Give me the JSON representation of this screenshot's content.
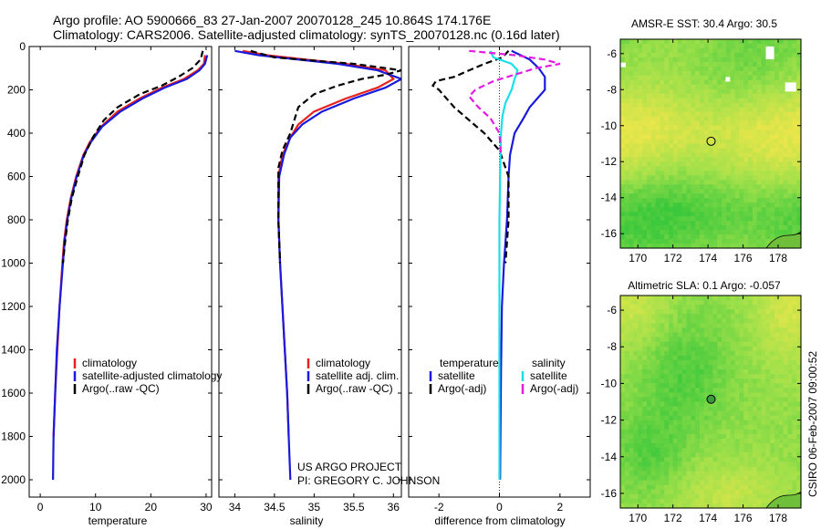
{
  "header": {
    "title_line1": "Argo profile: AO 5900666_83 27-Jan-2007 20070128_245 10.864S 174.176E",
    "title_line2": "Climatology: CARS2006. Satellite-adjusted climatology: synTS_20070128.nc (0.16d later)"
  },
  "credit": {
    "project": "US ARGO PROJECT",
    "pi": "PI: GREGORY C. JOHNSON"
  },
  "side_stamp": "CSIRO 06-Feb-2007 09:00:52",
  "colors": {
    "climatology": "#e8211c",
    "satellite": "#1a1adc",
    "argo": "#000000",
    "sal_satellite": "#19e0e6",
    "sal_argo": "#e21ce0",
    "map_base": "#9ee04a",
    "map_green": "#3cc83c",
    "map_yellow": "#e8e64a",
    "land": "#ffffff"
  },
  "chart_data": [
    {
      "name": "temperature-profile",
      "type": "line",
      "xlabel": "temperature",
      "ylabel": "",
      "xlim": [
        -2,
        31
      ],
      "ylim": [
        2080,
        0
      ],
      "xticks": [
        0,
        10,
        20,
        30
      ],
      "yticks": [
        0,
        200,
        400,
        600,
        800,
        1000,
        1200,
        1400,
        1600,
        1800,
        2000
      ],
      "series": [
        {
          "name": "climatology",
          "color": "#e8211c",
          "dash": "",
          "points": [
            [
              29.8,
              40
            ],
            [
              29.6,
              80
            ],
            [
              28.5,
              110
            ],
            [
              26,
              150
            ],
            [
              22,
              190
            ],
            [
              18,
              240
            ],
            [
              14,
              300
            ],
            [
              11,
              370
            ],
            [
              9,
              440
            ],
            [
              7.8,
              500
            ],
            [
              6.5,
              600
            ],
            [
              5.5,
              700
            ],
            [
              4.8,
              800
            ],
            [
              4.3,
              900
            ],
            [
              4,
              1000
            ],
            [
              3.5,
              1200
            ],
            [
              3.1,
              1400
            ],
            [
              2.7,
              1600
            ],
            [
              2.4,
              1800
            ]
          ]
        },
        {
          "name": "satellite-adjusted climatology",
          "color": "#1a1adc",
          "dash": "",
          "points": [
            [
              30.2,
              40
            ],
            [
              29.8,
              80
            ],
            [
              28.8,
              110
            ],
            [
              26.5,
              150
            ],
            [
              22.5,
              190
            ],
            [
              18.5,
              240
            ],
            [
              14.5,
              300
            ],
            [
              11.2,
              370
            ],
            [
              9.2,
              440
            ],
            [
              7.9,
              500
            ],
            [
              6.6,
              600
            ],
            [
              5.6,
              700
            ],
            [
              4.9,
              800
            ],
            [
              4.4,
              900
            ],
            [
              4.1,
              1000
            ],
            [
              3.5,
              1200
            ],
            [
              3,
              1400
            ],
            [
              2.7,
              1600
            ],
            [
              2.4,
              1800
            ],
            [
              2.3,
              2000
            ]
          ]
        },
        {
          "name": "Argo(..raw -QC)",
          "color": "#000000",
          "dash": "7,4",
          "points": [
            [
              29.4,
              20
            ],
            [
              29,
              60
            ],
            [
              27.5,
              100
            ],
            [
              25,
              140
            ],
            [
              22,
              180
            ],
            [
              18,
              220
            ],
            [
              14,
              280
            ],
            [
              11.5,
              340
            ],
            [
              9.5,
              420
            ],
            [
              8,
              500
            ],
            [
              6.8,
              600
            ],
            [
              5.7,
              700
            ],
            [
              5,
              800
            ],
            [
              4.5,
              900
            ],
            [
              4.1,
              1000
            ]
          ]
        }
      ],
      "legend": [
        "climatology",
        "satellite-adjusted climatology",
        "Argo(..raw -QC)"
      ]
    },
    {
      "name": "salinity-profile",
      "type": "line",
      "xlabel": "salinity",
      "ylabel": "",
      "xlim": [
        33.8,
        36.1
      ],
      "ylim": [
        2080,
        0
      ],
      "xticks": [
        34,
        34.5,
        35,
        35.5,
        36
      ],
      "xtick_labels": [
        "34",
        "34.5",
        "35",
        "35.5",
        "36"
      ],
      "series": [
        {
          "name": "climatology",
          "color": "#e8211c",
          "dash": "",
          "points": [
            [
              34.1,
              20
            ],
            [
              34.4,
              40
            ],
            [
              34.9,
              60
            ],
            [
              35.4,
              80
            ],
            [
              35.9,
              110
            ],
            [
              36,
              150
            ],
            [
              35.8,
              190
            ],
            [
              35.4,
              240
            ],
            [
              35,
              300
            ],
            [
              34.8,
              360
            ],
            [
              34.7,
              420
            ],
            [
              34.6,
              500
            ],
            [
              34.55,
              600
            ],
            [
              34.55,
              800
            ],
            [
              34.57,
              1000
            ],
            [
              34.6,
              1200
            ],
            [
              34.63,
              1400
            ],
            [
              34.66,
              1600
            ],
            [
              34.68,
              1800
            ]
          ]
        },
        {
          "name": "satellite adj. clim.",
          "color": "#1a1adc",
          "dash": "",
          "points": [
            [
              34,
              20
            ],
            [
              34.3,
              40
            ],
            [
              34.8,
              60
            ],
            [
              35.3,
              80
            ],
            [
              35.8,
              110
            ],
            [
              36.1,
              150
            ],
            [
              35.9,
              190
            ],
            [
              35.5,
              240
            ],
            [
              35.1,
              300
            ],
            [
              34.85,
              360
            ],
            [
              34.7,
              420
            ],
            [
              34.62,
              500
            ],
            [
              34.56,
              600
            ],
            [
              34.55,
              800
            ],
            [
              34.57,
              1000
            ],
            [
              34.6,
              1200
            ],
            [
              34.63,
              1400
            ],
            [
              34.66,
              1600
            ],
            [
              34.68,
              1800
            ],
            [
              34.7,
              2000
            ]
          ]
        },
        {
          "name": "Argo(..raw -QC)",
          "color": "#000000",
          "dash": "7,4",
          "points": [
            [
              34.2,
              20
            ],
            [
              34.5,
              50
            ],
            [
              35.5,
              80
            ],
            [
              36.1,
              110
            ],
            [
              35.9,
              130
            ],
            [
              35.6,
              150
            ],
            [
              35.3,
              180
            ],
            [
              35,
              220
            ],
            [
              34.8,
              280
            ],
            [
              34.75,
              340
            ],
            [
              34.7,
              400
            ],
            [
              34.6,
              480
            ],
            [
              34.55,
              560
            ],
            [
              34.55,
              800
            ],
            [
              34.57,
              1000
            ]
          ]
        }
      ],
      "legend": [
        "climatology",
        "satellite adj. clim.",
        "Argo(..raw -QC)"
      ]
    },
    {
      "name": "difference-profile",
      "type": "line",
      "xlabel": "difference from climatology",
      "ylabel": "",
      "xlim": [
        -3,
        3
      ],
      "ylim": [
        2080,
        0
      ],
      "xticks": [
        -2,
        0,
        2
      ],
      "zero_line": true,
      "series": [
        {
          "name": "temperature satellite",
          "color": "#1a1adc",
          "dash": "",
          "points": [
            [
              0.4,
              20
            ],
            [
              1,
              60
            ],
            [
              1.3,
              100
            ],
            [
              1.5,
              140
            ],
            [
              1.5,
              200
            ],
            [
              1,
              280
            ],
            [
              0.8,
              330
            ],
            [
              0.5,
              400
            ],
            [
              0.35,
              500
            ],
            [
              0.3,
              600
            ],
            [
              0.25,
              800
            ],
            [
              0.15,
              1000
            ],
            [
              0.08,
              1200
            ],
            [
              0.05,
              1500
            ],
            [
              0.02,
              2000
            ]
          ]
        },
        {
          "name": "temperature Argo(-adj)",
          "color": "#000000",
          "dash": "7,4",
          "points": [
            [
              0.3,
              20
            ],
            [
              0.1,
              50
            ],
            [
              -0.5,
              80
            ],
            [
              -1,
              110
            ],
            [
              -1.5,
              140
            ],
            [
              -2.1,
              160
            ],
            [
              -2.2,
              180
            ],
            [
              -2,
              200
            ],
            [
              -1.5,
              280
            ],
            [
              -1,
              340
            ],
            [
              -0.5,
              400
            ],
            [
              0,
              480
            ],
            [
              0.3,
              600
            ],
            [
              0.3,
              800
            ],
            [
              0.2,
              1000
            ]
          ]
        },
        {
          "name": "salinity satellite",
          "color": "#19e0e6",
          "dash": "",
          "points": [
            [
              -0.3,
              20
            ],
            [
              -0.2,
              50
            ],
            [
              0.4,
              80
            ],
            [
              0.6,
              110
            ],
            [
              0.5,
              150
            ],
            [
              0.4,
              200
            ],
            [
              0.2,
              260
            ],
            [
              0.1,
              320
            ],
            [
              0.05,
              400
            ],
            [
              0.02,
              600
            ],
            [
              0,
              800
            ],
            [
              0,
              1000
            ],
            [
              0,
              1500
            ],
            [
              0,
              2000
            ]
          ]
        },
        {
          "name": "salinity Argo(-adj)",
          "color": "#e21ce0",
          "dash": "7,4",
          "points": [
            [
              -1,
              20
            ],
            [
              0.5,
              40
            ],
            [
              1.5,
              60
            ],
            [
              2,
              80
            ],
            [
              1.2,
              100
            ],
            [
              0.5,
              130
            ],
            [
              -0.2,
              160
            ],
            [
              -0.8,
              200
            ],
            [
              -1,
              230
            ],
            [
              -0.7,
              280
            ],
            [
              -0.3,
              330
            ],
            [
              0,
              400
            ],
            [
              0.05,
              500
            ]
          ]
        }
      ],
      "legend": {
        "temperature_head": "temperature",
        "salinity_head": "salinity",
        "t_sat": "satellite",
        "t_argo": "Argo(-adj)",
        "s_sat": "satellite",
        "s_argo": "Argo(-adj)"
      }
    },
    {
      "name": "sst-map",
      "type": "heatmap",
      "title": "AMSR-E SST: 30.4 Argo: 30.5",
      "xlim": [
        169,
        179.3
      ],
      "ylim": [
        -16.8,
        -5.2
      ],
      "xticks": [
        170,
        172,
        174,
        176,
        178
      ],
      "yticks": [
        -6,
        -8,
        -10,
        -12,
        -14,
        -16
      ],
      "marker": {
        "lon": 174.176,
        "lat": -10.864
      }
    },
    {
      "name": "sla-map",
      "type": "heatmap",
      "title": "Altimetric SLA: 0.1 Argo: -0.057",
      "xlim": [
        169,
        179.3
      ],
      "ylim": [
        -16.8,
        -5.2
      ],
      "xticks": [
        170,
        172,
        174,
        176,
        178
      ],
      "yticks": [
        -6,
        -8,
        -10,
        -12,
        -14,
        -16
      ],
      "marker": {
        "lon": 174.176,
        "lat": -10.864
      }
    }
  ]
}
